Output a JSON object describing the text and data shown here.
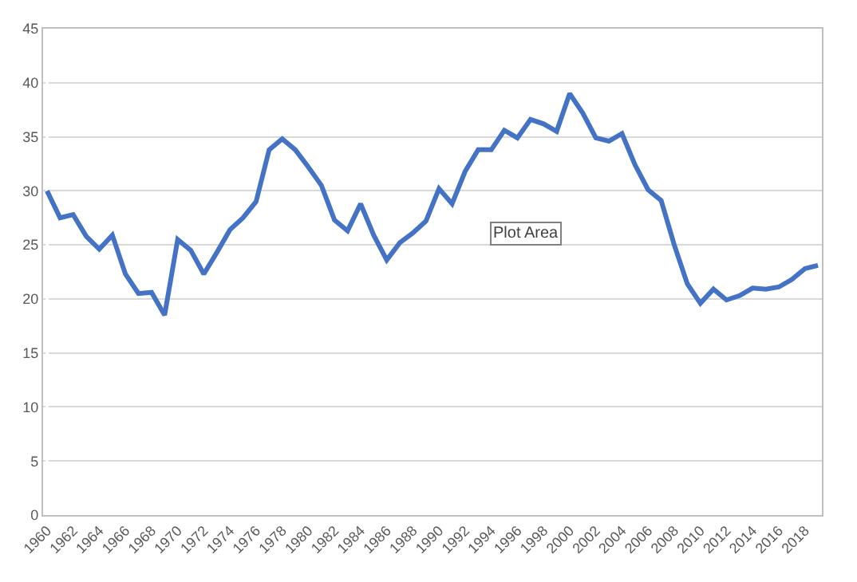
{
  "chart_data": {
    "type": "line",
    "categories": [
      "1960",
      null,
      "1962",
      null,
      "1964",
      null,
      "1966",
      null,
      "1968",
      null,
      "1970",
      null,
      "1972",
      null,
      "1974",
      null,
      "1976",
      null,
      "1978",
      null,
      "1980",
      null,
      "1982",
      null,
      "1984",
      null,
      "1986",
      null,
      "1988",
      null,
      "1990",
      null,
      "1992",
      null,
      "1994",
      null,
      "1996",
      null,
      "1998",
      null,
      "2000",
      null,
      "2002",
      null,
      "2004",
      null,
      "2006",
      null,
      "2008",
      null,
      "2010",
      null,
      "2012",
      null,
      "2014",
      null,
      "2016",
      null,
      "2018",
      null
    ],
    "series": [
      {
        "color": "#4472c4",
        "values": [
          30.0,
          27.5,
          27.8,
          25.8,
          24.6,
          25.9,
          22.3,
          20.5,
          20.6,
          18.5,
          25.5,
          24.5,
          22.3,
          24.3,
          26.4,
          27.5,
          29.0,
          33.8,
          34.8,
          33.8,
          32.2,
          30.5,
          27.3,
          26.3,
          28.8,
          25.9,
          23.6,
          25.2,
          26.1,
          27.2,
          30.2,
          28.8,
          31.8,
          33.8,
          33.8,
          35.6,
          34.9,
          36.6,
          36.2,
          35.5,
          39.0,
          37.2,
          34.9,
          34.6,
          35.3,
          32.4,
          30.1,
          29.1,
          25.0,
          21.4,
          19.6,
          20.9,
          19.9,
          20.3,
          21.0,
          20.9,
          21.1,
          21.8,
          22.8,
          23.1
        ]
      }
    ],
    "ylim": [
      0,
      45
    ],
    "yticks": [
      0,
      5,
      10,
      15,
      20,
      25,
      30,
      35,
      40,
      45
    ],
    "grid": "y",
    "marker": "none",
    "line_style": "solid",
    "annotations": [
      "Plot Area"
    ]
  }
}
